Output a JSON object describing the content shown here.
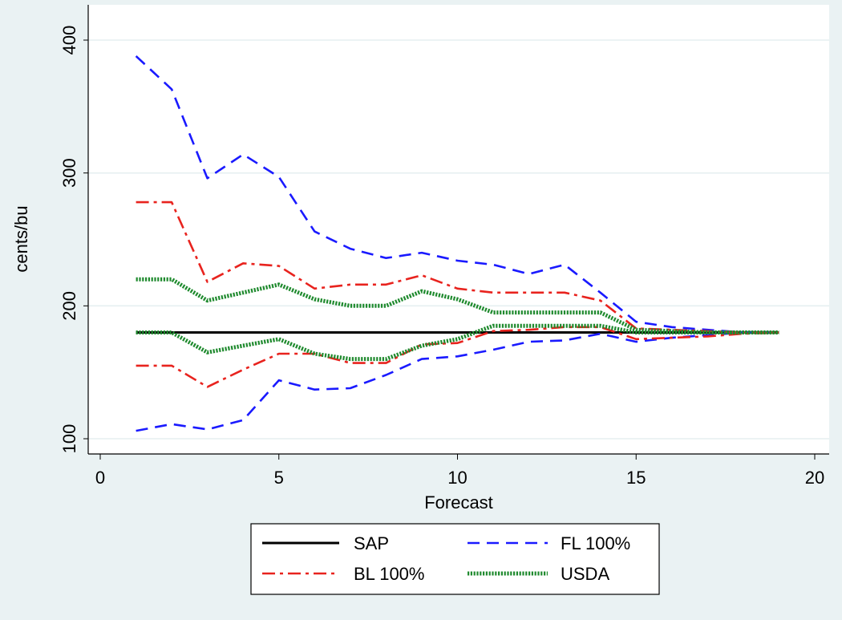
{
  "chart_data": {
    "type": "line",
    "title": "",
    "xlabel": "Forecast",
    "ylabel": "cents/bu",
    "xlim": [
      0,
      20
    ],
    "ylim": [
      100,
      400
    ],
    "xticks": [
      "0",
      "5",
      "10",
      "15",
      "20"
    ],
    "yticks": [
      "100",
      "200",
      "300",
      "400"
    ],
    "grid": "horizontal",
    "legend_position": "bottom",
    "x": [
      1,
      2,
      3,
      4,
      5,
      6,
      7,
      8,
      9,
      10,
      11,
      12,
      13,
      14,
      15,
      16,
      17,
      18,
      19
    ],
    "series": [
      {
        "name": "SAP",
        "color": "#000000",
        "style": "solid",
        "values": [
          180,
          180,
          180,
          180,
          180,
          180,
          180,
          180,
          180,
          180,
          180,
          180,
          180,
          180,
          180,
          180,
          180,
          180,
          180
        ]
      },
      {
        "name": "FL 100%",
        "color": "#1a1aff",
        "style": "dash",
        "band": "upper",
        "values": [
          388,
          363,
          296,
          314,
          297,
          256,
          243,
          236,
          240,
          234,
          231,
          224,
          231,
          210,
          188,
          184,
          182,
          180,
          180
        ]
      },
      {
        "name": "FL 100%",
        "color": "#1a1aff",
        "style": "dash",
        "band": "lower",
        "values": [
          106,
          111,
          107,
          114,
          144,
          137,
          138,
          148,
          160,
          162,
          167,
          173,
          174,
          179,
          173,
          176,
          178,
          180,
          180
        ]
      },
      {
        "name": "BL 100%",
        "color": "#e8231e",
        "style": "dashdot",
        "band": "upper",
        "values": [
          278,
          278,
          218,
          232,
          230,
          213,
          216,
          216,
          223,
          213,
          210,
          210,
          210,
          204,
          183,
          182,
          181,
          180,
          180
        ]
      },
      {
        "name": "BL 100%",
        "color": "#e8231e",
        "style": "dashdot",
        "band": "lower",
        "values": [
          155,
          155,
          139,
          152,
          164,
          164,
          157,
          157,
          171,
          172,
          181,
          182,
          184,
          184,
          175,
          176,
          177,
          179,
          180
        ]
      },
      {
        "name": "USDA",
        "color": "#1f8a2e",
        "style": "dotted",
        "band": "upper",
        "values": [
          220,
          220,
          204,
          210,
          216,
          205,
          200,
          200,
          211,
          205,
          195,
          195,
          195,
          195,
          182,
          181,
          180,
          180,
          180
        ]
      },
      {
        "name": "USDA",
        "color": "#1f8a2e",
        "style": "dotted",
        "band": "lower",
        "values": [
          180,
          180,
          165,
          170,
          175,
          164,
          160,
          160,
          170,
          175,
          185,
          185,
          185,
          185,
          180,
          180,
          180,
          180,
          180
        ]
      }
    ],
    "legend": [
      {
        "label": "SAP",
        "color": "#000000",
        "style": "solid"
      },
      {
        "label": "FL 100%",
        "color": "#1a1aff",
        "style": "dash"
      },
      {
        "label": "BL 100%",
        "color": "#e8231e",
        "style": "dashdot"
      },
      {
        "label": "USDA",
        "color": "#1f8a2e",
        "style": "dotted"
      }
    ]
  }
}
